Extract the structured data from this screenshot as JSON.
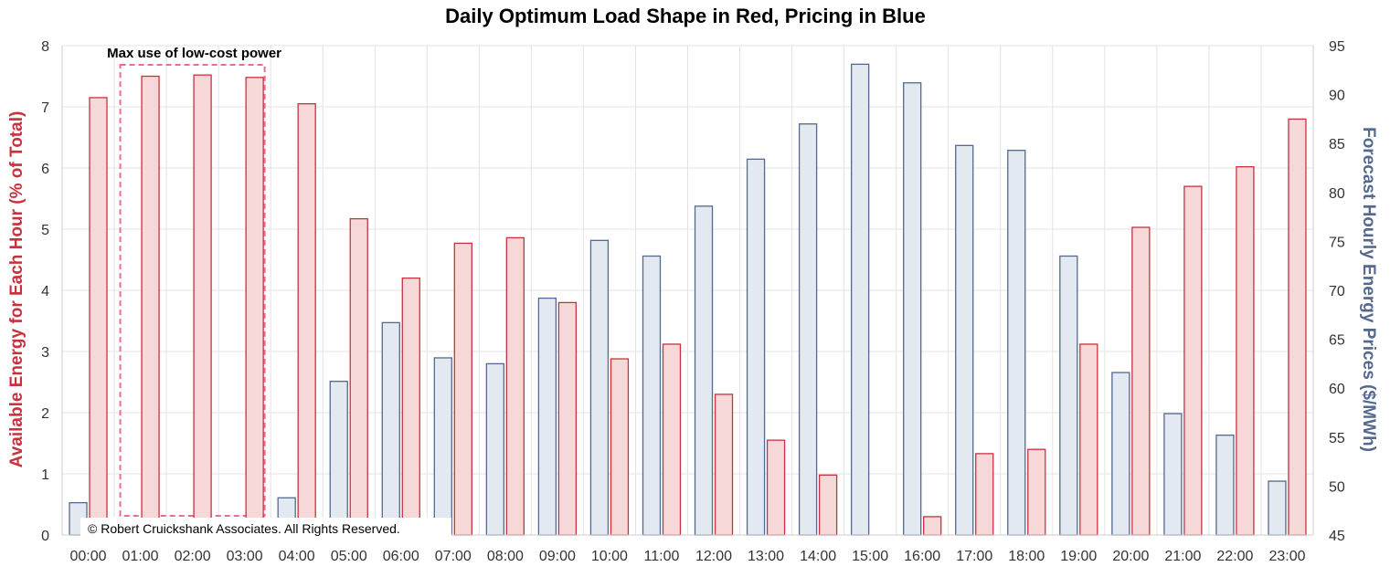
{
  "chart_data": {
    "type": "bar",
    "title": "Daily Optimum Load Shape in Red, Pricing in Blue",
    "xlabel": "",
    "categories": [
      "00:00",
      "01:00",
      "02:00",
      "03:00",
      "04:00",
      "05:00",
      "06:00",
      "07:00",
      "08:00",
      "09:00",
      "10:00",
      "11:00",
      "12:00",
      "13:00",
      "14:00",
      "15:00",
      "16:00",
      "17:00",
      "18:00",
      "19:00",
      "20:00",
      "21:00",
      "22:00",
      "23:00"
    ],
    "series": [
      {
        "axis": "right",
        "color": "#54698d",
        "fill": "#e3e9f1",
        "values": [
          48.3,
          null,
          null,
          null,
          48.8,
          60.7,
          66.7,
          63.1,
          62.5,
          69.2,
          75.1,
          73.5,
          78.6,
          83.4,
          87.0,
          93.1,
          91.2,
          84.8,
          84.3,
          73.5,
          61.6,
          57.4,
          55.2,
          50.5
        ]
      },
      {
        "axis": "left",
        "color": "#c8323c",
        "fill": "#f6d8d9",
        "values": [
          7.15,
          7.5,
          7.52,
          7.48,
          7.05,
          5.17,
          4.2,
          4.77,
          4.86,
          3.8,
          2.88,
          3.12,
          2.3,
          1.55,
          0.98,
          null,
          0.3,
          1.33,
          1.4,
          3.12,
          5.03,
          5.7,
          6.02,
          6.8
        ]
      }
    ],
    "ylabel": "Available Energy for Each Hour (% of Total)",
    "ylim": [
      0,
      8
    ],
    "yticks": [
      "0",
      "1",
      "2",
      "3",
      "4",
      "5",
      "6",
      "7",
      "8"
    ],
    "y2label": "Forecast Hourly Energy Prices ($/MWh)",
    "y2lim": [
      45,
      95
    ],
    "y2ticks": [
      "45",
      "50",
      "55",
      "60",
      "65",
      "70",
      "75",
      "80",
      "85",
      "90",
      "95"
    ],
    "grid": true,
    "annotations": {
      "highlight_label": "Max use of low-cost power",
      "highlight_range": [
        "01:00",
        "03:00"
      ],
      "copyright": "© Robert Cruickshank Associates. All Rights Reserved."
    }
  },
  "colors": {
    "load": "#c8323c",
    "price": "#54698d",
    "highlight": "#ec6a9c"
  }
}
